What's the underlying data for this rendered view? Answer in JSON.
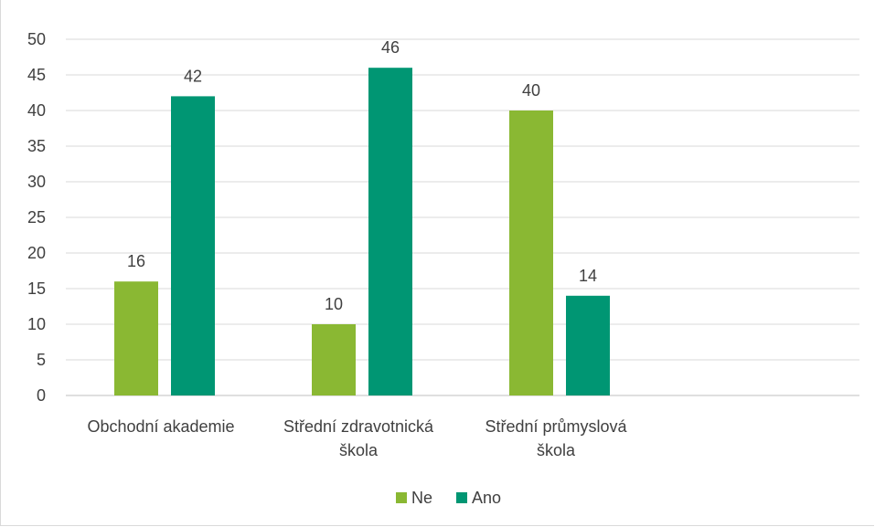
{
  "chart_data": {
    "type": "bar",
    "categories": [
      "Obchodní akademie",
      "Střední zdravotnická škola",
      "Střední průmyslová škola"
    ],
    "category_lines": [
      [
        "Obchodní akademie"
      ],
      [
        "Střední zdravotnická",
        "škola"
      ],
      [
        "Střední průmyslová",
        "škola"
      ]
    ],
    "series": [
      {
        "name": "Ne",
        "values": [
          16,
          10,
          40
        ],
        "color": "#8ab833"
      },
      {
        "name": "Ano",
        "values": [
          42,
          46,
          14
        ],
        "color": "#009673"
      }
    ],
    "ylim": [
      0,
      50
    ],
    "yticks": [
      0,
      5,
      10,
      15,
      20,
      25,
      30,
      35,
      40,
      45,
      50
    ],
    "grid": true,
    "legend": "bottom-center",
    "data_labels": true
  }
}
